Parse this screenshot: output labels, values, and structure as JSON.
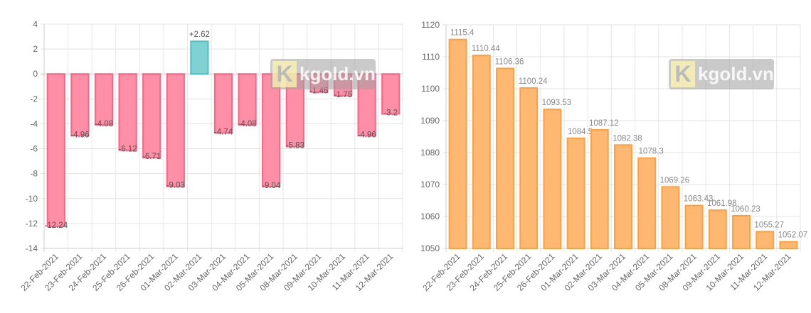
{
  "watermark": "kgold.vn",
  "chart_data": [
    {
      "type": "bar",
      "title": "",
      "xlabel": "",
      "ylabel": "",
      "ylim": [
        -14,
        4
      ],
      "yticks": [
        4,
        2,
        0,
        -2,
        -4,
        -6,
        -8,
        -10,
        -12,
        -14
      ],
      "grid": true,
      "categories": [
        "22-Feb-2021",
        "23-Feb-2021",
        "24-Feb-2021",
        "25-Feb-2021",
        "26-Feb-2021",
        "01-Mar-2021",
        "02-Mar-2021",
        "03-Mar-2021",
        "04-Mar-2021",
        "05-Mar-2021",
        "08-Mar-2021",
        "09-Mar-2021",
        "10-Mar-2021",
        "11-Mar-2021",
        "12-Mar-2021"
      ],
      "values": [
        -12.24,
        -4.96,
        -4.08,
        -6.12,
        -6.71,
        -9.03,
        2.62,
        -4.74,
        -4.08,
        -9.04,
        -5.83,
        -1.45,
        -1.75,
        -4.96,
        -3.2
      ],
      "labels": [
        "-12.24",
        "-4.96",
        "-4.08",
        "-6.12",
        "-6.71",
        "-9.03",
        "+2.62",
        "-4.74",
        "-4.08",
        "-9.04",
        "-5.83",
        "-1.45",
        "-1.75",
        "-4.96",
        "-3.2"
      ],
      "colors": {
        "negative_fill": "#ff8fa6",
        "negative_stroke": "#ff6384",
        "positive_fill": "#80d2d2",
        "positive_stroke": "#4bc0c0"
      }
    },
    {
      "type": "bar",
      "title": "",
      "xlabel": "",
      "ylabel": "",
      "ylim": [
        1050,
        1120
      ],
      "yticks": [
        1120,
        1110,
        1100,
        1090,
        1080,
        1070,
        1060,
        1050
      ],
      "grid": true,
      "categories": [
        "22-Feb-2021",
        "23-Feb-2021",
        "24-Feb-2021",
        "25-Feb-2021",
        "26-Feb-2021",
        "01-Mar-2021",
        "02-Mar-2021",
        "03-Mar-2021",
        "04-Mar-2021",
        "05-Mar-2021",
        "08-Mar-2021",
        "09-Mar-2021",
        "10-Mar-2021",
        "11-Mar-2021",
        "12-Mar-2021"
      ],
      "values": [
        1115.4,
        1110.44,
        1106.36,
        1100.24,
        1093.53,
        1084.5,
        1087.12,
        1082.38,
        1078.3,
        1069.26,
        1063.43,
        1061.98,
        1060.23,
        1055.27,
        1052.07
      ],
      "labels": [
        "1115.4",
        "1110.44",
        "1106.36",
        "1100.24",
        "1093.53",
        "1084.5",
        "1087.12",
        "1082.38",
        "1078.3",
        "1069.26",
        "1063.43",
        "1061.98",
        "1060.23",
        "1055.27",
        "1052.07"
      ],
      "colors": {
        "fill": "#ffb872",
        "stroke": "#ff9f40"
      }
    }
  ]
}
